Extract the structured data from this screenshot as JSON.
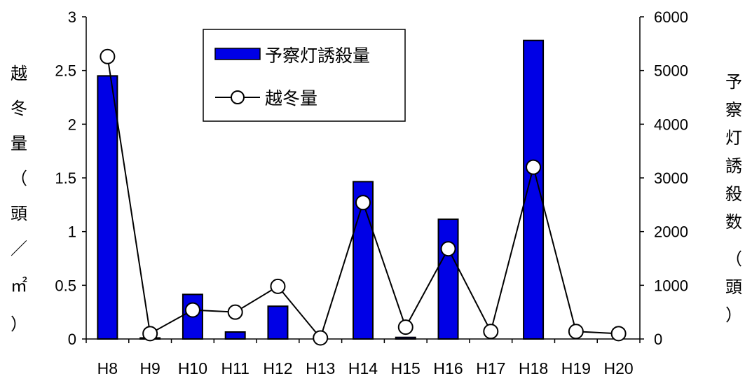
{
  "chart_data": {
    "type": "bar+line",
    "categories": [
      "H8",
      "H9",
      "H10",
      "H11",
      "H12",
      "H13",
      "H14",
      "H15",
      "H16",
      "H17",
      "H18",
      "H19",
      "H20"
    ],
    "series": [
      {
        "name": "予察灯誘殺量",
        "type": "bar",
        "axis": "right",
        "color": "#0000e6",
        "values": [
          4900,
          20,
          830,
          130,
          610,
          0,
          2930,
          30,
          2230,
          0,
          5560,
          0,
          0
        ]
      },
      {
        "name": "越冬量",
        "type": "line",
        "axis": "left",
        "color": "#000000",
        "values": [
          2.63,
          0.05,
          0.27,
          0.25,
          0.49,
          0.01,
          1.27,
          0.11,
          0.84,
          0.07,
          1.6,
          0.07,
          0.05
        ]
      }
    ],
    "ylabel": "越冬量（頭／㎡）",
    "y2label": "予察灯誘殺数（頭）",
    "ylim": [
      0,
      3
    ],
    "y2lim": [
      0,
      6000
    ],
    "yticks": [
      "0",
      "0.5",
      "1",
      "1.5",
      "2",
      "2.5",
      "3"
    ],
    "y2ticks": [
      "0",
      "1000",
      "2000",
      "3000",
      "4000",
      "5000",
      "6000"
    ],
    "legend_position": "top-center",
    "grid": false
  }
}
